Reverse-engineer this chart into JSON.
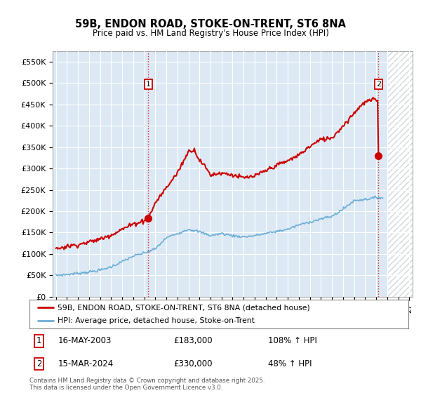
{
  "title": "59B, ENDON ROAD, STOKE-ON-TRENT, ST6 8NA",
  "subtitle": "Price paid vs. HM Land Registry's House Price Index (HPI)",
  "hpi_label": "HPI: Average price, detached house, Stoke-on-Trent",
  "property_label": "59B, ENDON ROAD, STOKE-ON-TRENT, ST6 8NA (detached house)",
  "sale1_date": "16-MAY-2003",
  "sale1_price": 183000,
  "sale1_hpi": "108% ↑ HPI",
  "sale2_date": "15-MAR-2024",
  "sale2_price": 330000,
  "sale2_hpi": "48% ↑ HPI",
  "copyright": "Contains HM Land Registry data © Crown copyright and database right 2025.\nThis data is licensed under the Open Government Licence v3.0.",
  "ylim": [
    0,
    575000
  ],
  "yticks": [
    0,
    50000,
    100000,
    150000,
    200000,
    250000,
    300000,
    350000,
    400000,
    450000,
    500000,
    550000
  ],
  "xlim_start": 1994.7,
  "xlim_end": 2027.3,
  "hpi_color": "#6baed6",
  "property_color": "#cc0000",
  "vline_color": "#cc0000",
  "bg_color": "#dce9f5",
  "hatch_bg": "#e8eef5",
  "grid_color": "#ffffff",
  "sale1_x": 2003.37,
  "sale2_x": 2024.21,
  "hatch_start": 2025.0,
  "sale1_y": 183000,
  "sale2_y": 330000
}
